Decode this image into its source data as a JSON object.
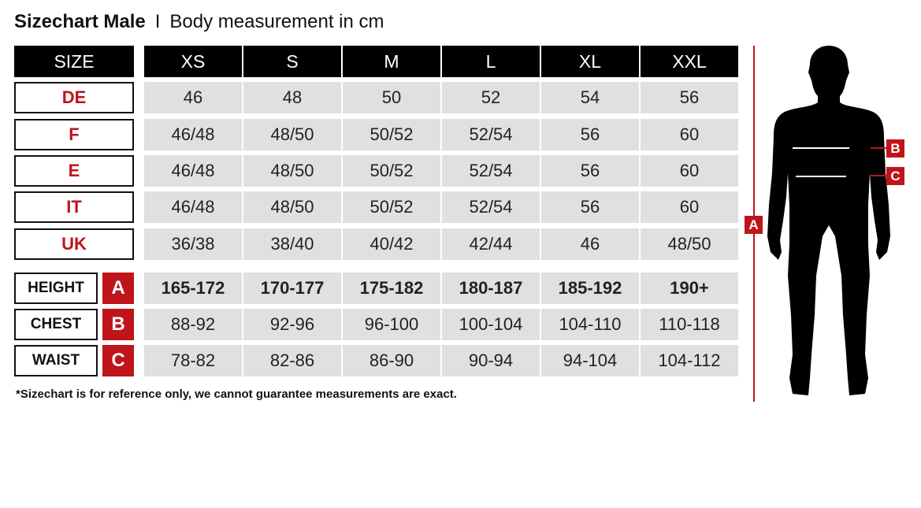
{
  "title": {
    "bold": "Sizechart Male",
    "separator": "I",
    "subtitle": "Body measurement in cm"
  },
  "header": {
    "label": "SIZE",
    "sizes": [
      "XS",
      "S",
      "M",
      "L",
      "XL",
      "XXL"
    ]
  },
  "size_rows": [
    {
      "label": "DE",
      "values": [
        "46",
        "48",
        "50",
        "52",
        "54",
        "56"
      ]
    },
    {
      "label": "F",
      "values": [
        "46/48",
        "48/50",
        "50/52",
        "52/54",
        "56",
        "60"
      ]
    },
    {
      "label": "E",
      "values": [
        "46/48",
        "48/50",
        "50/52",
        "52/54",
        "56",
        "60"
      ]
    },
    {
      "label": "IT",
      "values": [
        "46/48",
        "48/50",
        "50/52",
        "52/54",
        "56",
        "60"
      ]
    },
    {
      "label": "UK",
      "values": [
        "36/38",
        "38/40",
        "40/42",
        "42/44",
        "46",
        "48/50"
      ]
    }
  ],
  "measure_rows": [
    {
      "label": "HEIGHT",
      "marker": "A",
      "values": [
        "165-172",
        "170-177",
        "175-182",
        "180-187",
        "185-192",
        "190+"
      ]
    },
    {
      "label": "CHEST",
      "marker": "B",
      "values": [
        "88-92",
        "92-96",
        "96-100",
        "100-104",
        "104-110",
        "110-118"
      ]
    },
    {
      "label": "WAIST",
      "marker": "C",
      "values": [
        "78-82",
        "82-86",
        "86-90",
        "90-94",
        "94-104",
        "104-112"
      ]
    }
  ],
  "footnote": "*Sizechart is for reference only, we cannot guarantee measurements are exact.",
  "figure": {
    "height_marker": "A",
    "chest_marker": "B",
    "waist_marker": "C"
  },
  "colors": {
    "accent": "#c0141b",
    "header": "#000000",
    "cell": "#e0e0e0"
  }
}
